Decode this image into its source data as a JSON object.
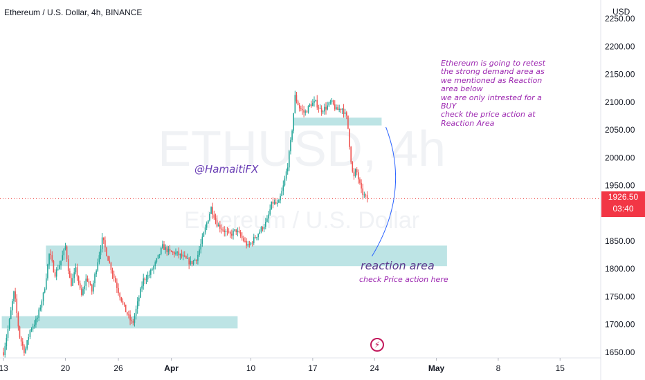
{
  "header": {
    "title": "Ethereum / U.S. Dollar, 4h, BINANCE",
    "currency": "USD"
  },
  "watermark": {
    "line1": "ETHUSD, 4h",
    "line2": "Ethereum / U.S. Dollar"
  },
  "price_tag": {
    "price": "1926.50",
    "countdown": "03:40"
  },
  "annotations": {
    "handle": "@HamaitiFX",
    "note": "Ethereum is going to retest\nthe strong demand area as\nwe mentioned as Reaction\narea below\nwe are only intrested for a\nBUY\ncheck the price action at\nReaction Area",
    "reaction_title": "reaction area",
    "reaction_sub": "check Price action here"
  },
  "colors": {
    "up": "#26a69a",
    "down": "#ef5350",
    "zone": "#b2dfe0",
    "annotation": "#9c27b0",
    "price_tag": "#f23645",
    "arc": "#2962ff"
  },
  "chart_data": {
    "type": "candlestick",
    "symbol": "ETHUSD",
    "timeframe": "4h",
    "exchange": "BINANCE",
    "y_ticks": [
      "2250.00",
      "2200.00",
      "2150.00",
      "2100.00",
      "2050.00",
      "2000.00",
      "1950.00",
      "1900.00",
      "1850.00",
      "1800.00",
      "1750.00",
      "1700.00",
      "1650.00"
    ],
    "y_tick_values": [
      2250,
      2200,
      2150,
      2100,
      2050,
      2000,
      1950,
      1900,
      1850,
      1800,
      1750,
      1700,
      1650
    ],
    "ylim": [
      1640,
      2260
    ],
    "x_ticks": [
      {
        "label": "13",
        "day": 13
      },
      {
        "label": "20",
        "day": 20
      },
      {
        "label": "26",
        "day": 26
      },
      {
        "label": "Apr",
        "day": 32
      },
      {
        "label": "10",
        "day": 41
      },
      {
        "label": "17",
        "day": 48
      },
      {
        "label": "24",
        "day": 55
      },
      {
        "label": "May",
        "day": 62
      },
      {
        "label": "8",
        "day": 69
      },
      {
        "label": "15",
        "day": 76
      }
    ],
    "x_range_days": [
      12.6,
      80.6
    ],
    "last_price": 1926.5,
    "price_path": [
      [
        13.0,
        1650
      ],
      [
        13.6,
        1700
      ],
      [
        14.2,
        1760
      ],
      [
        14.8,
        1680
      ],
      [
        15.4,
        1650
      ],
      [
        16.0,
        1690
      ],
      [
        16.8,
        1710
      ],
      [
        17.6,
        1760
      ],
      [
        18.2,
        1830
      ],
      [
        18.8,
        1790
      ],
      [
        19.4,
        1810
      ],
      [
        20.0,
        1840
      ],
      [
        20.6,
        1770
      ],
      [
        21.2,
        1800
      ],
      [
        21.8,
        1750
      ],
      [
        22.4,
        1785
      ],
      [
        23.0,
        1760
      ],
      [
        23.6,
        1810
      ],
      [
        24.2,
        1855
      ],
      [
        24.8,
        1820
      ],
      [
        25.4,
        1790
      ],
      [
        26.0,
        1760
      ],
      [
        26.8,
        1725
      ],
      [
        27.6,
        1700
      ],
      [
        28.2,
        1740
      ],
      [
        28.8,
        1780
      ],
      [
        29.5,
        1790
      ],
      [
        30.2,
        1810
      ],
      [
        31.0,
        1840
      ],
      [
        31.8,
        1830
      ],
      [
        32.6,
        1828
      ],
      [
        33.4,
        1820
      ],
      [
        34.2,
        1810
      ],
      [
        34.9,
        1820
      ],
      [
        35.8,
        1870
      ],
      [
        36.5,
        1910
      ],
      [
        37.2,
        1880
      ],
      [
        37.9,
        1870
      ],
      [
        38.6,
        1860
      ],
      [
        39.3,
        1870
      ],
      [
        40.0,
        1855
      ],
      [
        40.7,
        1840
      ],
      [
        41.4,
        1855
      ],
      [
        42.1,
        1870
      ],
      [
        42.8,
        1885
      ],
      [
        43.4,
        1920
      ],
      [
        44.1,
        1915
      ],
      [
        44.7,
        1950
      ],
      [
        45.2,
        1990
      ],
      [
        45.6,
        2040
      ],
      [
        46.0,
        2110
      ],
      [
        46.5,
        2090
      ],
      [
        47.1,
        2080
      ],
      [
        47.7,
        2095
      ],
      [
        48.3,
        2100
      ],
      [
        48.9,
        2085
      ],
      [
        49.5,
        2090
      ],
      [
        50.1,
        2100
      ],
      [
        50.7,
        2085
      ],
      [
        51.3,
        2090
      ],
      [
        51.9,
        2070
      ],
      [
        52.3,
        2000
      ],
      [
        52.6,
        1960
      ],
      [
        52.9,
        1980
      ],
      [
        53.2,
        1960
      ],
      [
        53.5,
        1940
      ],
      [
        53.9,
        1930
      ],
      [
        54.2,
        1926.5
      ]
    ],
    "zones": [
      {
        "label": "reaction area",
        "x_start_day": 17.8,
        "x_end_day": 63.2,
        "y_low": 1805,
        "y_high": 1842
      },
      {
        "label": "upper zone",
        "x_start_day": 45.8,
        "x_end_day": 55.8,
        "y_low": 2058,
        "y_high": 2072
      },
      {
        "label": "lower zone",
        "x_start_day": 12.8,
        "x_end_day": 39.5,
        "y_low": 1693,
        "y_high": 1715
      }
    ],
    "arc": {
      "from_day": 54.4,
      "from_price": 2065,
      "to_day": 54.7,
      "to_price": 1840
    }
  }
}
